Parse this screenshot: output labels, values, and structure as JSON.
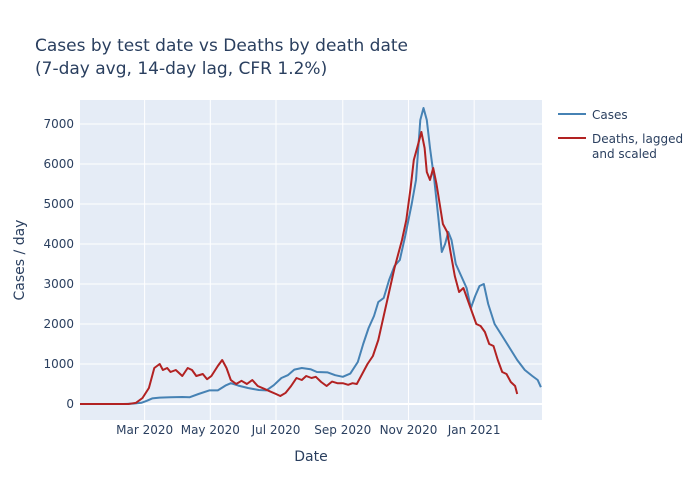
{
  "chart_data": {
    "type": "line",
    "title": "Cases by test date vs Deaths by death date",
    "subtitle": "(7-day avg, 14-day lag, CFR 1.2%)",
    "xlabel": "Date",
    "ylabel": "Cases / day",
    "xlim": [
      "2020-01-01",
      "2021-03-05"
    ],
    "ylim": [
      -400,
      7600
    ],
    "x_ticks": [
      {
        "date": "2020-03-01",
        "label": "Mar 2020"
      },
      {
        "date": "2020-05-01",
        "label": "May 2020"
      },
      {
        "date": "2020-07-01",
        "label": "Jul 2020"
      },
      {
        "date": "2020-09-01",
        "label": "Sep 2020"
      },
      {
        "date": "2020-11-01",
        "label": "Nov 2020"
      },
      {
        "date": "2021-01-01",
        "label": "Jan 2021"
      }
    ],
    "y_ticks": [
      0,
      1000,
      2000,
      3000,
      4000,
      5000,
      6000,
      7000
    ],
    "grid": true,
    "plot_background": "#e5ecf6",
    "legend_position": "top-right",
    "series": [
      {
        "name": "Cases",
        "color": "#4682b4",
        "points": [
          [
            "2020-01-01",
            0
          ],
          [
            "2020-02-10",
            0
          ],
          [
            "2020-02-20",
            10
          ],
          [
            "2020-02-27",
            30
          ],
          [
            "2020-03-03",
            80
          ],
          [
            "2020-03-08",
            140
          ],
          [
            "2020-03-15",
            160
          ],
          [
            "2020-03-25",
            170
          ],
          [
            "2020-04-05",
            175
          ],
          [
            "2020-04-12",
            170
          ],
          [
            "2020-04-20",
            250
          ],
          [
            "2020-04-30",
            340
          ],
          [
            "2020-05-08",
            340
          ],
          [
            "2020-05-15",
            460
          ],
          [
            "2020-05-20",
            520
          ],
          [
            "2020-05-27",
            460
          ],
          [
            "2020-06-05",
            400
          ],
          [
            "2020-06-15",
            350
          ],
          [
            "2020-06-22",
            340
          ],
          [
            "2020-06-29",
            470
          ],
          [
            "2020-07-06",
            650
          ],
          [
            "2020-07-12",
            720
          ],
          [
            "2020-07-18",
            860
          ],
          [
            "2020-07-25",
            900
          ],
          [
            "2020-08-02",
            870
          ],
          [
            "2020-08-08",
            800
          ],
          [
            "2020-08-18",
            790
          ],
          [
            "2020-08-25",
            720
          ],
          [
            "2020-09-01",
            680
          ],
          [
            "2020-09-08",
            760
          ],
          [
            "2020-09-15",
            1050
          ],
          [
            "2020-09-20",
            1500
          ],
          [
            "2020-09-25",
            1900
          ],
          [
            "2020-09-30",
            2200
          ],
          [
            "2020-10-04",
            2550
          ],
          [
            "2020-10-09",
            2650
          ],
          [
            "2020-10-14",
            3100
          ],
          [
            "2020-10-19",
            3450
          ],
          [
            "2020-10-24",
            3600
          ],
          [
            "2020-10-29",
            4200
          ],
          [
            "2020-11-04",
            5000
          ],
          [
            "2020-11-08",
            5600
          ],
          [
            "2020-11-12",
            7100
          ],
          [
            "2020-11-15",
            7400
          ],
          [
            "2020-11-18",
            7100
          ],
          [
            "2020-11-21",
            6400
          ],
          [
            "2020-11-25",
            5600
          ],
          [
            "2020-11-29",
            4600
          ],
          [
            "2020-12-02",
            3800
          ],
          [
            "2020-12-05",
            4000
          ],
          [
            "2020-12-08",
            4300
          ],
          [
            "2020-12-11",
            4100
          ],
          [
            "2020-12-15",
            3500
          ],
          [
            "2020-12-20",
            3200
          ],
          [
            "2020-12-25",
            2900
          ],
          [
            "2020-12-29",
            2400
          ],
          [
            "2021-01-02",
            2700
          ],
          [
            "2021-01-06",
            2950
          ],
          [
            "2021-01-10",
            3000
          ],
          [
            "2021-01-14",
            2500
          ],
          [
            "2021-01-20",
            2000
          ],
          [
            "2021-01-27",
            1700
          ],
          [
            "2021-02-03",
            1400
          ],
          [
            "2021-02-10",
            1100
          ],
          [
            "2021-02-17",
            850
          ],
          [
            "2021-02-24",
            700
          ],
          [
            "2021-03-01",
            600
          ],
          [
            "2021-03-04",
            420
          ]
        ]
      },
      {
        "name": "Deaths, lagged and scaled",
        "legend_lines": [
          "Deaths, lagged",
          "and scaled"
        ],
        "color": "#b22222",
        "points": [
          [
            "2020-01-01",
            0
          ],
          [
            "2020-02-15",
            0
          ],
          [
            "2020-02-22",
            30
          ],
          [
            "2020-02-28",
            150
          ],
          [
            "2020-03-05",
            400
          ],
          [
            "2020-03-10",
            900
          ],
          [
            "2020-03-15",
            1000
          ],
          [
            "2020-03-18",
            850
          ],
          [
            "2020-03-22",
            900
          ],
          [
            "2020-03-25",
            800
          ],
          [
            "2020-03-30",
            850
          ],
          [
            "2020-04-05",
            700
          ],
          [
            "2020-04-10",
            900
          ],
          [
            "2020-04-14",
            850
          ],
          [
            "2020-04-18",
            700
          ],
          [
            "2020-04-24",
            750
          ],
          [
            "2020-04-28",
            620
          ],
          [
            "2020-05-02",
            700
          ],
          [
            "2020-05-08",
            950
          ],
          [
            "2020-05-12",
            1100
          ],
          [
            "2020-05-16",
            900
          ],
          [
            "2020-05-20",
            600
          ],
          [
            "2020-05-25",
            500
          ],
          [
            "2020-05-30",
            580
          ],
          [
            "2020-06-04",
            500
          ],
          [
            "2020-06-09",
            600
          ],
          [
            "2020-06-14",
            450
          ],
          [
            "2020-06-20",
            380
          ],
          [
            "2020-06-25",
            320
          ],
          [
            "2020-07-01",
            250
          ],
          [
            "2020-07-05",
            200
          ],
          [
            "2020-07-10",
            280
          ],
          [
            "2020-07-15",
            450
          ],
          [
            "2020-07-20",
            650
          ],
          [
            "2020-07-25",
            600
          ],
          [
            "2020-07-29",
            700
          ],
          [
            "2020-08-03",
            650
          ],
          [
            "2020-08-07",
            680
          ],
          [
            "2020-08-12",
            550
          ],
          [
            "2020-08-17",
            450
          ],
          [
            "2020-08-22",
            560
          ],
          [
            "2020-08-27",
            520
          ],
          [
            "2020-09-01",
            520
          ],
          [
            "2020-09-06",
            480
          ],
          [
            "2020-09-10",
            520
          ],
          [
            "2020-09-14",
            500
          ],
          [
            "2020-09-18",
            700
          ],
          [
            "2020-09-24",
            1000
          ],
          [
            "2020-09-29",
            1200
          ],
          [
            "2020-10-04",
            1600
          ],
          [
            "2020-10-09",
            2200
          ],
          [
            "2020-10-14",
            2800
          ],
          [
            "2020-10-19",
            3400
          ],
          [
            "2020-10-22",
            3700
          ],
          [
            "2020-10-26",
            4100
          ],
          [
            "2020-10-30",
            4600
          ],
          [
            "2020-11-03",
            5400
          ],
          [
            "2020-11-06",
            6100
          ],
          [
            "2020-11-09",
            6400
          ],
          [
            "2020-11-13",
            6800
          ],
          [
            "2020-11-16",
            6400
          ],
          [
            "2020-11-18",
            5800
          ],
          [
            "2020-11-21",
            5600
          ],
          [
            "2020-11-24",
            5900
          ],
          [
            "2020-11-27",
            5500
          ],
          [
            "2020-11-30",
            5000
          ],
          [
            "2020-12-03",
            4500
          ],
          [
            "2020-12-07",
            4300
          ],
          [
            "2020-12-10",
            3800
          ],
          [
            "2020-12-14",
            3200
          ],
          [
            "2020-12-18",
            2800
          ],
          [
            "2020-12-22",
            2900
          ],
          [
            "2020-12-26",
            2600
          ],
          [
            "2020-12-30",
            2300
          ],
          [
            "2021-01-03",
            2000
          ],
          [
            "2021-01-07",
            1950
          ],
          [
            "2021-01-11",
            1800
          ],
          [
            "2021-01-15",
            1500
          ],
          [
            "2021-01-19",
            1450
          ],
          [
            "2021-01-23",
            1100
          ],
          [
            "2021-01-27",
            800
          ],
          [
            "2021-01-31",
            750
          ],
          [
            "2021-02-04",
            550
          ],
          [
            "2021-02-08",
            450
          ],
          [
            "2021-02-10",
            250
          ]
        ]
      }
    ]
  }
}
